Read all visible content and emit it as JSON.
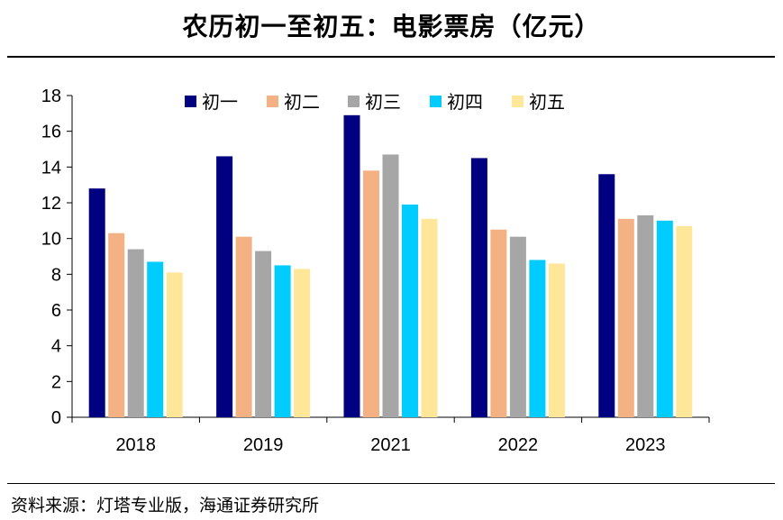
{
  "title": "农历初一至初五：电影票房（亿元）",
  "source": "资料来源：灯塔专业版，海通证券研究所",
  "chart_data": {
    "type": "bar",
    "categories": [
      "2018",
      "2019",
      "2021",
      "2022",
      "2023"
    ],
    "series": [
      {
        "name": "初一",
        "color": "#000080",
        "values": [
          12.8,
          14.6,
          16.9,
          14.5,
          13.6
        ]
      },
      {
        "name": "初二",
        "color": "#F4B183",
        "values": [
          10.3,
          10.1,
          13.8,
          10.5,
          11.1
        ]
      },
      {
        "name": "初三",
        "color": "#A6A6A6",
        "values": [
          9.4,
          9.3,
          14.7,
          10.1,
          11.3
        ]
      },
      {
        "name": "初四",
        "color": "#00CCFF",
        "values": [
          8.7,
          8.5,
          11.9,
          8.8,
          11.0
        ]
      },
      {
        "name": "初五",
        "color": "#FFE699",
        "values": [
          8.1,
          8.3,
          11.1,
          8.6,
          10.7
        ]
      }
    ],
    "ylim": [
      0,
      18
    ],
    "yticks": [
      0,
      2,
      4,
      6,
      8,
      10,
      12,
      14,
      16,
      18
    ],
    "legend_position": "top",
    "grid": false
  }
}
